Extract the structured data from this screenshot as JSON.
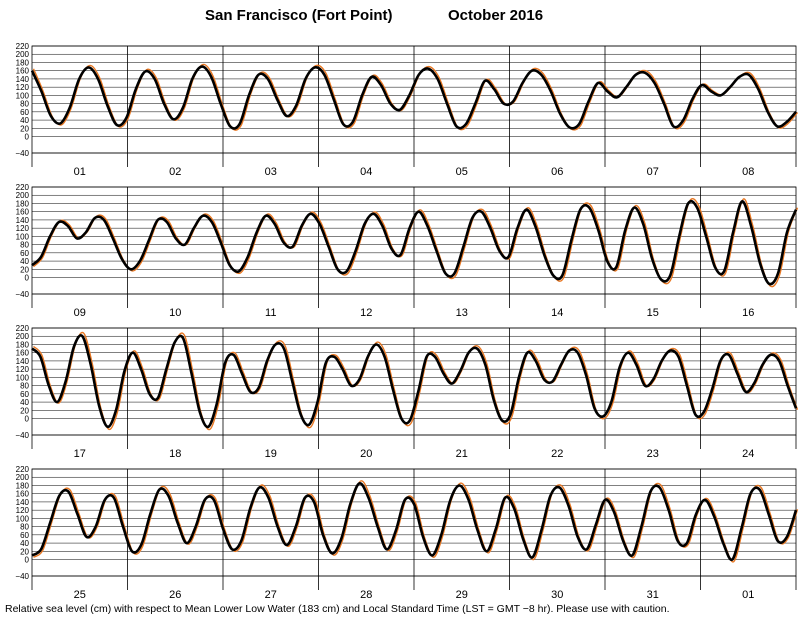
{
  "chart_data": {
    "type": "line",
    "title_location": "San Francisco (Fort Point)",
    "title_period": "October   2016",
    "footnote": "Relative sea level (cm) with respect to Mean Lower Low Water (183 cm) and Local Standard Time (LST = GMT −8 hr). Please use with caution.",
    "ylim": [
      -40,
      220
    ],
    "yticks": [
      "220",
      "200",
      "180",
      "160",
      "140",
      "120",
      "100",
      "80",
      "60",
      "40",
      "20",
      "0",
      "−40"
    ],
    "ytick_values": [
      220,
      200,
      180,
      160,
      140,
      120,
      100,
      80,
      60,
      40,
      20,
      0,
      -40
    ],
    "grid": true,
    "series_colors": {
      "observed": "#000000",
      "predicted": "#e87722"
    },
    "panels": [
      {
        "days": [
          "01",
          "02",
          "03",
          "04",
          "05",
          "06",
          "07",
          "08"
        ],
        "observed": [
          160,
          110,
          50,
          32,
          70,
          140,
          168,
          140,
          75,
          28,
          45,
          115,
          158,
          140,
          80,
          42,
          70,
          140,
          170,
          145,
          80,
          25,
          30,
          100,
          150,
          140,
          90,
          50,
          75,
          140,
          168,
          150,
          90,
          30,
          35,
          100,
          145,
          125,
          80,
          65,
          100,
          150,
          165,
          140,
          80,
          25,
          30,
          80,
          135,
          115,
          80,
          85,
          130,
          160,
          150,
          110,
          55,
          22,
          30,
          85,
          130,
          110,
          95,
          120,
          150,
          155,
          130,
          80,
          25,
          38,
          90,
          125,
          110,
          100,
          120,
          145,
          150,
          115,
          60,
          25,
          35,
          60
        ]
      },
      {
        "days": [
          "09",
          "10",
          "11",
          "12",
          "13",
          "14",
          "15",
          "16"
        ],
        "observed": [
          30,
          50,
          100,
          135,
          125,
          95,
          110,
          145,
          140,
          95,
          45,
          20,
          40,
          90,
          140,
          135,
          95,
          80,
          120,
          150,
          135,
          85,
          30,
          15,
          50,
          110,
          150,
          130,
          85,
          75,
          125,
          155,
          130,
          75,
          20,
          15,
          65,
          130,
          155,
          125,
          70,
          55,
          120,
          160,
          125,
          65,
          10,
          10,
          75,
          145,
          160,
          120,
          65,
          50,
          120,
          165,
          125,
          55,
          5,
          5,
          90,
          165,
          170,
          115,
          40,
          25,
          115,
          170,
          130,
          45,
          -5,
          5,
          100,
          180,
          170,
          100,
          25,
          15,
          110,
          185,
          125,
          35,
          -15,
          10,
          110,
          165
        ]
      },
      {
        "days": [
          "17",
          "18",
          "19",
          "20",
          "21",
          "22",
          "23",
          "24"
        ],
        "observed": [
          170,
          150,
          80,
          40,
          90,
          175,
          200,
          130,
          30,
          -20,
          20,
          115,
          160,
          120,
          60,
          50,
          120,
          185,
          195,
          110,
          15,
          -20,
          35,
          135,
          155,
          110,
          65,
          75,
          140,
          180,
          170,
          90,
          10,
          -15,
          40,
          135,
          150,
          120,
          80,
          95,
          150,
          180,
          150,
          70,
          0,
          -5,
          65,
          150,
          150,
          110,
          85,
          115,
          160,
          170,
          130,
          45,
          -5,
          10,
          100,
          160,
          140,
          95,
          90,
          130,
          165,
          160,
          105,
          25,
          5,
          40,
          125,
          160,
          130,
          80,
          95,
          140,
          165,
          150,
          80,
          10,
          15,
          70,
          140,
          155,
          110,
          65,
          85,
          130,
          155,
          140,
          80,
          25
        ]
      },
      {
        "days": [
          "25",
          "26",
          "27",
          "28",
          "29",
          "30",
          "31",
          "01"
        ],
        "observed": [
          10,
          25,
          90,
          155,
          165,
          110,
          55,
          80,
          145,
          150,
          80,
          20,
          35,
          110,
          170,
          155,
          90,
          40,
          80,
          145,
          145,
          75,
          25,
          45,
          125,
          175,
          150,
          80,
          35,
          80,
          150,
          140,
          60,
          15,
          50,
          135,
          185,
          150,
          80,
          25,
          70,
          145,
          135,
          55,
          10,
          60,
          145,
          180,
          145,
          70,
          20,
          75,
          150,
          125,
          50,
          5,
          70,
          155,
          175,
          130,
          55,
          25,
          85,
          145,
          115,
          45,
          10,
          80,
          165,
          175,
          120,
          45,
          40,
          110,
          145,
          105,
          40,
          0,
          75,
          160,
          170,
          110,
          45,
          55,
          120
        ]
      }
    ]
  }
}
